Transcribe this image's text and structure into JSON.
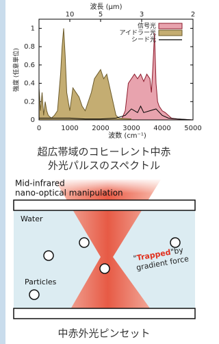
{
  "chart_data": {
    "type": "line",
    "x_title": "波数 (cm⁻¹)",
    "x2_title": "波長 (μm)",
    "y_title": "強度 (任意単位)",
    "xlim": [
      0,
      5000
    ],
    "xticks": [
      0,
      1000,
      2000,
      3000,
      4000,
      5000
    ],
    "x2ticks": [
      10,
      5,
      3,
      2
    ],
    "ylim": [
      0,
      1.1
    ],
    "yticks": [
      0,
      0.2,
      0.4,
      0.6,
      0.8,
      1
    ],
    "legend": "top-right",
    "series": [
      {
        "name": "信号光",
        "color": "#8b1a2b",
        "fill": "#e8a3ae",
        "x": [
          2500,
          2700,
          2800,
          2900,
          3000,
          3100,
          3200,
          3300,
          3400,
          3500,
          3600,
          3650,
          3700,
          3750,
          3800,
          3850,
          3900,
          4000,
          4100,
          4200,
          4300,
          4500,
          5000
        ],
        "values": [
          0,
          0.02,
          0.1,
          0.4,
          0.45,
          0.5,
          0.45,
          0.5,
          0.42,
          0.5,
          0.45,
          0.3,
          0.6,
          0.95,
          0.4,
          0.2,
          0.15,
          0.1,
          0.08,
          0.05,
          0.02,
          0.01,
          0
        ]
      },
      {
        "name": "アイドラー光",
        "color": "#6b5a2a",
        "fill": "#c4ad72",
        "x": [
          0,
          50,
          100,
          150,
          200,
          250,
          300,
          400,
          500,
          600,
          700,
          750,
          800,
          850,
          900,
          1000,
          1100,
          1200,
          1300,
          1400,
          1500,
          1600,
          1700,
          1800,
          1900,
          2000,
          2100,
          2200,
          2300,
          2400,
          2500,
          2600,
          3000
        ],
        "values": [
          0.35,
          0.1,
          0.3,
          0.05,
          0.2,
          0.1,
          0.05,
          0.02,
          0.05,
          0.1,
          0.5,
          0.8,
          1.0,
          0.7,
          0.3,
          0.1,
          0.35,
          0.3,
          0.25,
          0.15,
          0.1,
          0.2,
          0.3,
          0.45,
          0.5,
          0.55,
          0.45,
          0.5,
          0.35,
          0.2,
          0.05,
          0.02,
          0.01
        ]
      },
      {
        "name": "シード光",
        "color": "#000000",
        "x": [
          0,
          500,
          1000,
          1500,
          2000,
          2500,
          2800,
          3000,
          3200,
          3300,
          3400,
          3600,
          3800,
          4000,
          4200,
          4500,
          5000
        ],
        "values": [
          0.02,
          0.02,
          0.02,
          0.01,
          0.01,
          0.02,
          0.05,
          0.12,
          0.08,
          0.15,
          0.08,
          0.1,
          0.12,
          0.05,
          0.02,
          0.01,
          0
        ]
      }
    ]
  },
  "caption1": [
    "超広帯域のコヒーレント中赤",
    "外光パルスのスペクトル"
  ],
  "diagram": {
    "title": [
      "Mid-infrared",
      "nano-optical manipulation"
    ],
    "water": "Water",
    "particles": "Particles",
    "trapped": {
      "quote_open": "\"",
      "word": "Trapped",
      "rest": "\"by",
      "line2": "gradient force"
    }
  },
  "caption2": "中赤外光ピンセット"
}
